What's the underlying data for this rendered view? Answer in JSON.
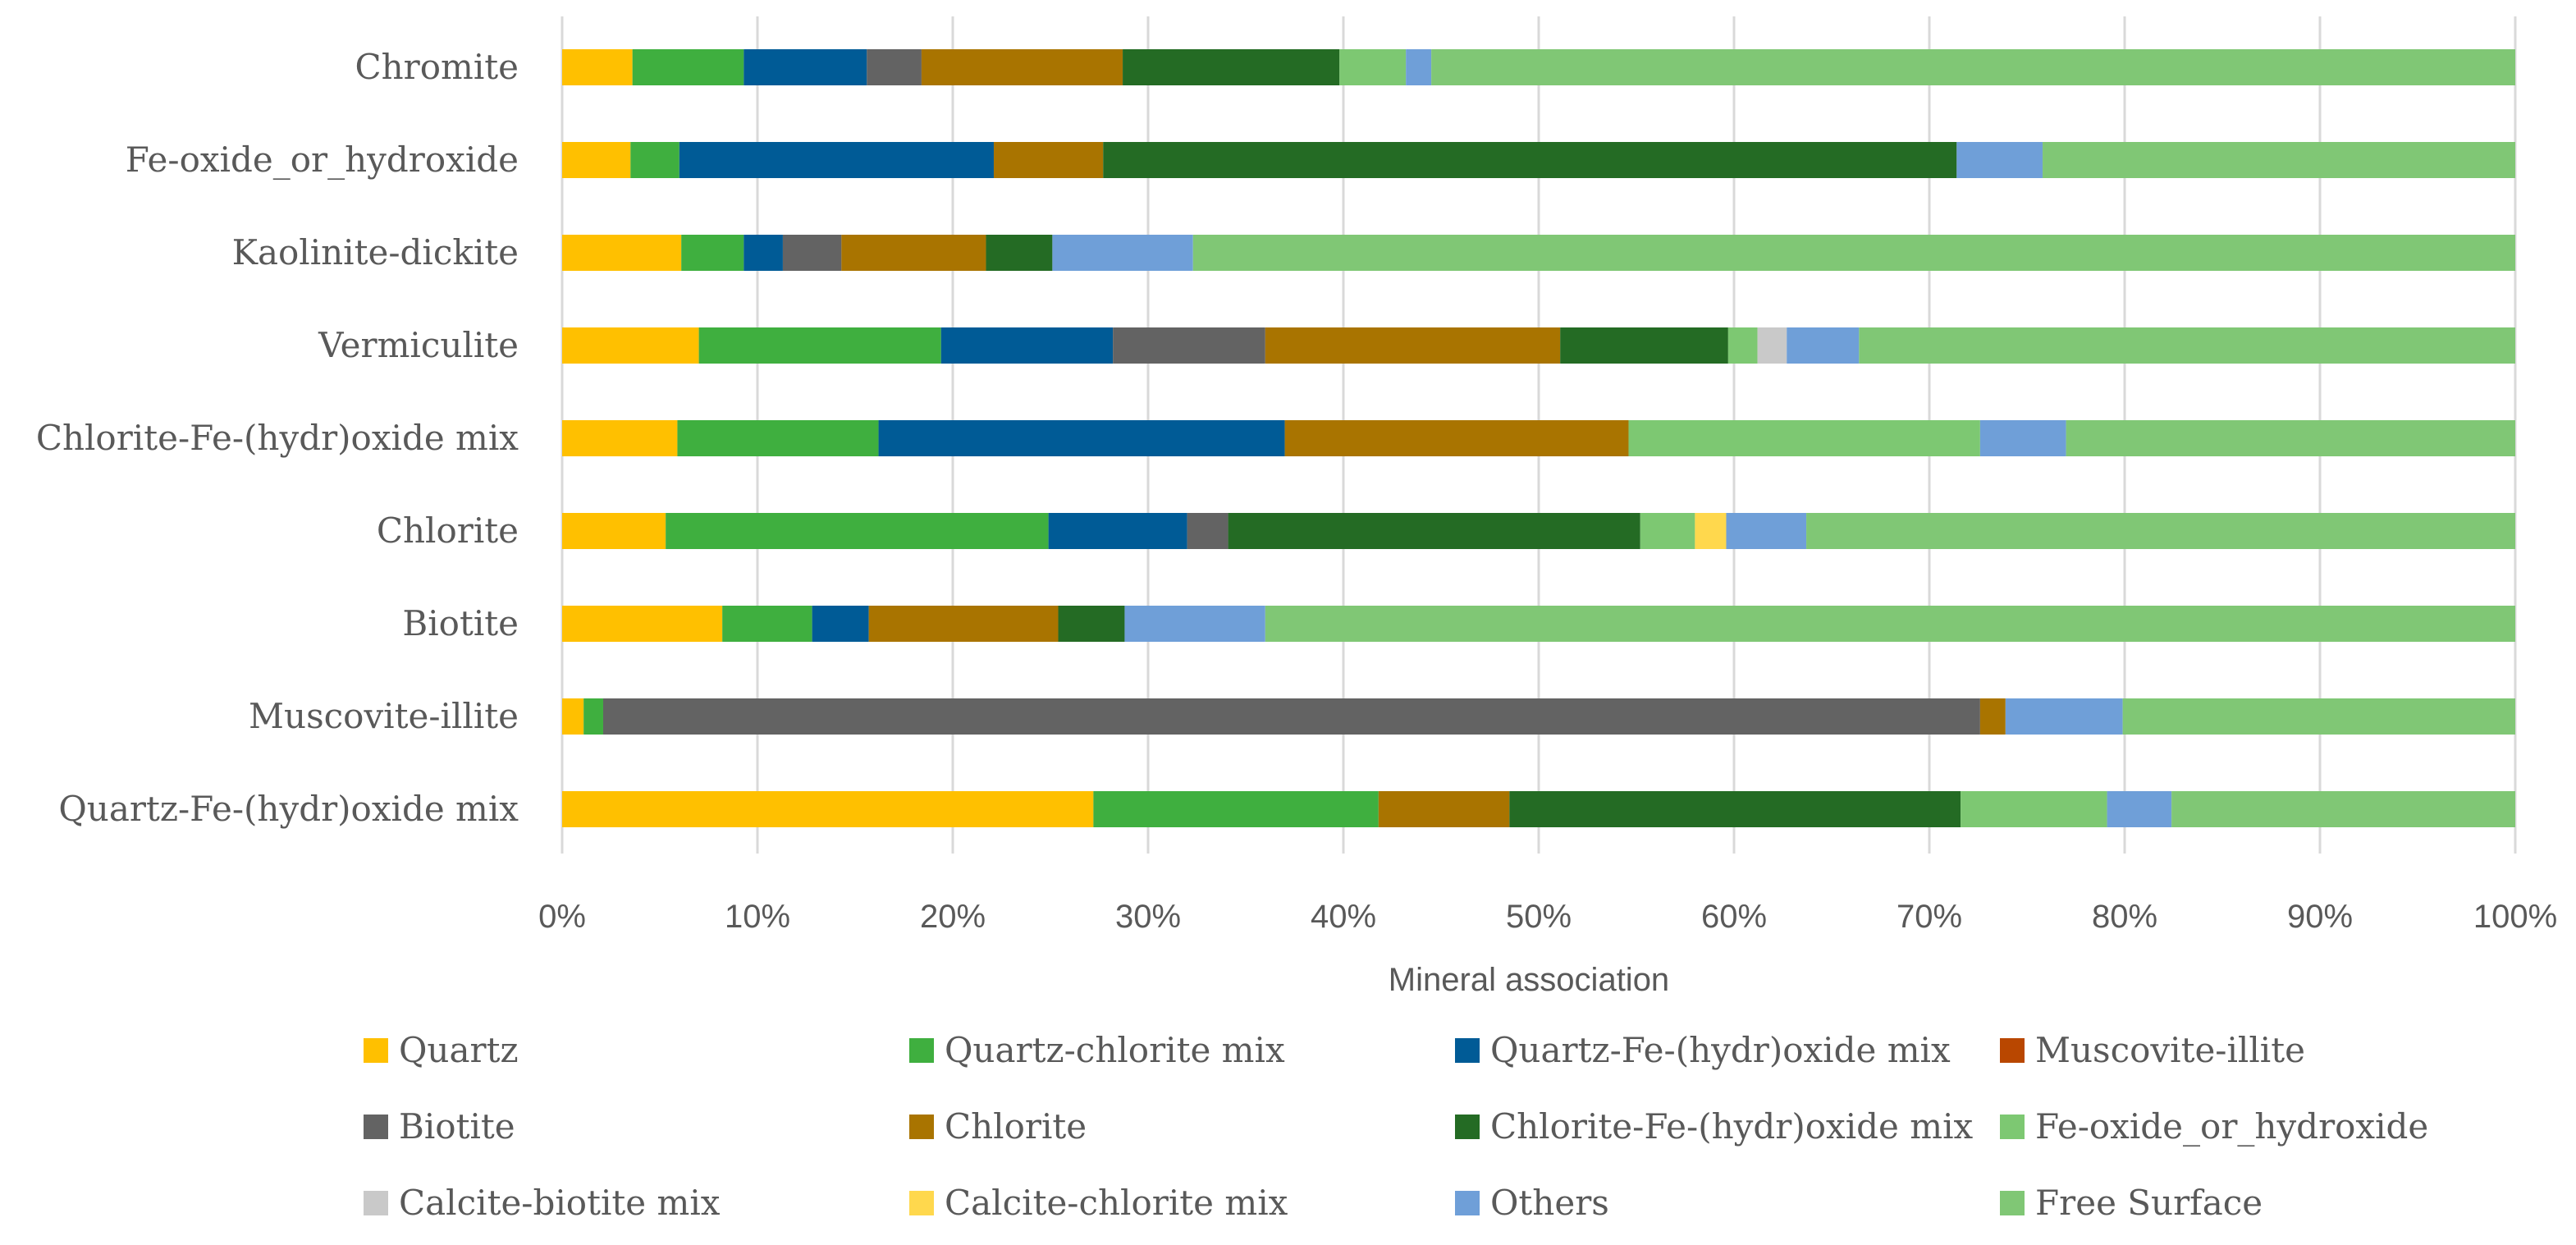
{
  "chart_data": {
    "type": "bar",
    "orientation": "horizontal",
    "stacked": "percent",
    "title": "",
    "xlabel": "Mineral association",
    "ylabel": "",
    "xlim": [
      0,
      100
    ],
    "x_ticks": [
      "0%",
      "10%",
      "20%",
      "30%",
      "40%",
      "50%",
      "60%",
      "70%",
      "80%",
      "90%",
      "100%"
    ],
    "grid": true,
    "legend_position": "bottom",
    "categories": [
      "Chromite",
      "Fe-oxide_or_hydroxide",
      "Kaolinite-dickite",
      "Vermiculite",
      "Chlorite-Fe-(hydr)oxide mix",
      "Chlorite",
      "Biotite",
      "Muscovite-illite",
      "Quartz-Fe-(hydr)oxide mix"
    ],
    "series": [
      {
        "name": "Quartz",
        "color": "#FFC000",
        "values": [
          3.6,
          3.5,
          6.1,
          7.0,
          5.9,
          5.3,
          8.2,
          1.1,
          27.2
        ]
      },
      {
        "name": "Quartz-chlorite mix",
        "color": "#3FAF3F",
        "values": [
          5.7,
          2.5,
          3.2,
          12.4,
          10.3,
          19.6,
          4.6,
          1.0,
          14.6
        ]
      },
      {
        "name": "Quartz-Fe-(hydr)oxide mix",
        "color": "#005B96",
        "values": [
          6.3,
          16.1,
          2.0,
          8.8,
          20.8,
          7.1,
          2.9,
          0.0,
          0.0
        ]
      },
      {
        "name": "Muscovite-illite",
        "color": "#B94700",
        "values": [
          0.0,
          0.0,
          0.0,
          0.0,
          0.0,
          0.0,
          0.0,
          0.0,
          0.0
        ]
      },
      {
        "name": "Biotite",
        "color": "#636363",
        "values": [
          2.8,
          0.0,
          3.0,
          7.8,
          0.0,
          2.1,
          0.0,
          70.5,
          0.0
        ]
      },
      {
        "name": "Chlorite",
        "color": "#A97400",
        "values": [
          10.3,
          5.6,
          7.4,
          15.1,
          17.6,
          0.0,
          9.7,
          1.3,
          6.7
        ]
      },
      {
        "name": "Chlorite-Fe-(hydr)oxide mix",
        "color": "#246B24",
        "values": [
          11.1,
          43.7,
          3.4,
          8.6,
          0.0,
          21.1,
          3.4,
          0.0,
          23.1
        ]
      },
      {
        "name": "Fe-oxide_or_hydroxide",
        "color": "#7DC872",
        "values": [
          3.4,
          0.0,
          0.0,
          1.5,
          18.0,
          2.8,
          0.0,
          0.0,
          7.5
        ]
      },
      {
        "name": "Calcite-biotite mix",
        "color": "#C9C9C9",
        "values": [
          0.0,
          0.0,
          0.0,
          1.5,
          0.0,
          0.0,
          0.0,
          0.0,
          0.0
        ]
      },
      {
        "name": "Calcite-chlorite mix",
        "color": "#FFD84D",
        "values": [
          0.0,
          0.0,
          0.0,
          0.0,
          0.0,
          1.6,
          0.0,
          0.0,
          0.0
        ]
      },
      {
        "name": "Others",
        "color": "#6F9FD8",
        "values": [
          1.3,
          4.4,
          7.2,
          3.7,
          4.4,
          4.1,
          7.2,
          6.0,
          3.3
        ]
      },
      {
        "name": "Free Surface",
        "color": "#80C775",
        "values": [
          55.5,
          24.2,
          67.7,
          33.6,
          23.0,
          36.3,
          64.0,
          20.1,
          17.6
        ]
      }
    ]
  }
}
